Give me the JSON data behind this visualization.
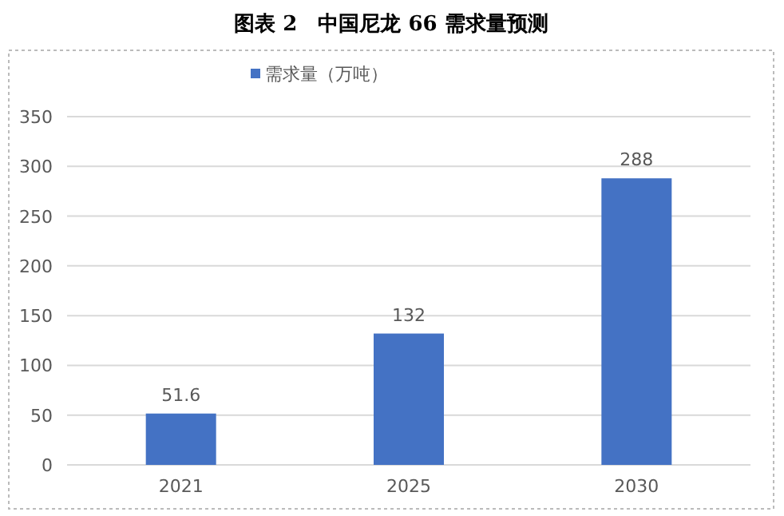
{
  "chart_data": {
    "type": "bar",
    "title": "图表 2　中国尼龙 66 需求量预测",
    "categories": [
      "2021",
      "2025",
      "2030"
    ],
    "series": [
      {
        "name": "需求量（万吨）",
        "color": "#4472c4",
        "values": [
          51.6,
          132,
          288
        ]
      }
    ],
    "ylim": [
      0,
      350
    ],
    "yticks": [
      0,
      50,
      100,
      150,
      200,
      250,
      300,
      350
    ],
    "grid": "y",
    "legend": "top",
    "data_labels": true
  }
}
